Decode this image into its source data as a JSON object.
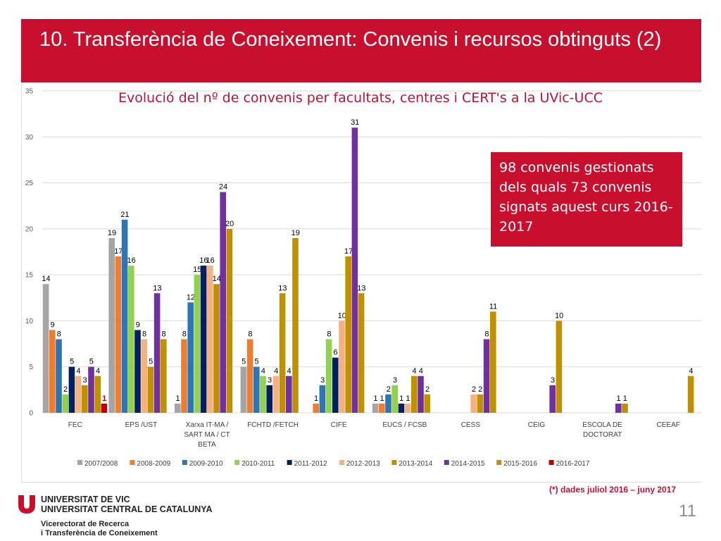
{
  "slide": {
    "title": "10. Transferència de Coneixement: Convenis i recursos obtinguts (2)",
    "infobox": "98 convenis gestionats dels quals 73 convenis signats aquest curs 2016-2017",
    "footnote": "(*)  dades juliol 2016 – juny 2017",
    "page_number": "11",
    "university_line1": "UNIVERSITAT DE VIC",
    "university_line2": "UNIVERSITAT CENTRAL DE CATALUNYA",
    "vicerectorat_line1": "Vicerectorat de Recerca",
    "vicerectorat_line2": "i Transferència de Coneixement",
    "brand_color": "#c8102e"
  },
  "chart_data": {
    "type": "bar",
    "title": "Evolució del nº de convenis per facultats, centres i CERT's a la UVic-UCC",
    "categories": [
      "FEC",
      "EPS /UST",
      "Xarxa IT-MA / SART MA / CT BETA",
      "FCHTD  /FETCH",
      "CIFE",
      "EUCS / FCSB",
      "CESS",
      "CEIG",
      "ESCOLA DE DOCTORAT",
      "CEEAF"
    ],
    "category_lines": [
      [
        "FEC"
      ],
      [
        "EPS /UST"
      ],
      [
        "Xarxa IT-MA /",
        "SART MA / CT",
        "BETA"
      ],
      [
        "FCHTD  /FETCH"
      ],
      [
        "CIFE"
      ],
      [
        "EUCS / FCSB"
      ],
      [
        "CESS"
      ],
      [
        "CEIG"
      ],
      [
        "ESCOLA DE",
        "DOCTORAT"
      ],
      [
        "CEEAF"
      ]
    ],
    "ylim": [
      0,
      35
    ],
    "yticks": [
      0,
      5,
      10,
      15,
      20,
      25,
      30,
      35
    ],
    "grid": true,
    "legend": "bottom",
    "series": [
      {
        "name": "2007/2008",
        "color": "#a5a5a5",
        "values": [
          14,
          19,
          1,
          5,
          null,
          1,
          null,
          null,
          null,
          null
        ]
      },
      {
        "name": "2008-2009",
        "color": "#ed7d31",
        "values": [
          9,
          17,
          8,
          8,
          1,
          1,
          null,
          null,
          null,
          null
        ]
      },
      {
        "name": "2009-2010",
        "color": "#2e75b6",
        "values": [
          8,
          21,
          12,
          5,
          3,
          2,
          null,
          null,
          null,
          null
        ]
      },
      {
        "name": "2010-2011",
        "color": "#92d050",
        "values": [
          2,
          16,
          15,
          4,
          8,
          3,
          null,
          null,
          null,
          null
        ]
      },
      {
        "name": "2011-2012",
        "color": "#002060",
        "values": [
          5,
          9,
          16,
          3,
          6,
          1,
          null,
          null,
          null,
          null
        ]
      },
      {
        "name": "2012-2013",
        "color": "#f4b183",
        "values": [
          4,
          8,
          16,
          4,
          10,
          1,
          2,
          null,
          null,
          null
        ]
      },
      {
        "name": "2013-2014",
        "color": "#bf9000",
        "values": [
          3,
          5,
          14,
          13,
          17,
          4,
          2,
          null,
          null,
          null
        ]
      },
      {
        "name": "2014-2015",
        "color": "#7030a0",
        "values": [
          5,
          13,
          24,
          4,
          31,
          4,
          8,
          3,
          1,
          null
        ]
      },
      {
        "name": "2015-2016",
        "color": "#c09000",
        "values": [
          4,
          8,
          20,
          19,
          13,
          2,
          11,
          10,
          1,
          4
        ]
      },
      {
        "name": "2016-2017",
        "color": "#c00000",
        "values": [
          1,
          null,
          null,
          null,
          null,
          null,
          null,
          null,
          null,
          null
        ]
      }
    ]
  }
}
